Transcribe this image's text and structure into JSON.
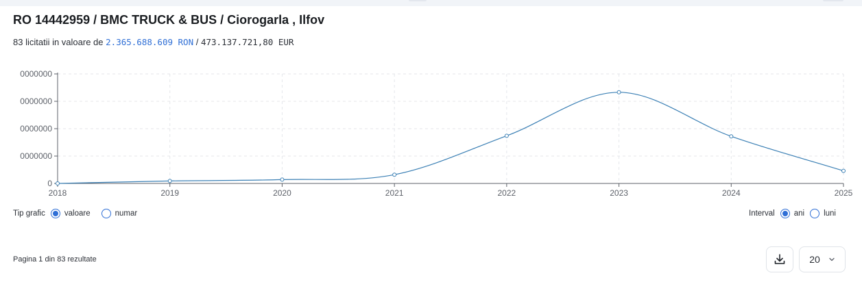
{
  "header": {
    "title": "RO 14442959 / BMC TRUCK & BUS / Ciorogarla , Ilfov",
    "summary_prefix": "83 licitatii in valoare de",
    "value_ron": "2.365.688.609 RON",
    "separator": "/",
    "value_eur": "473.137.721,80 EUR"
  },
  "colors": {
    "accent": "#2f6fd6",
    "line": "#3a7fb4"
  },
  "chart_data": {
    "type": "line",
    "x": [
      "2018",
      "2019",
      "2020",
      "2021",
      "2022",
      "2023",
      "2024",
      "2025"
    ],
    "series": [
      {
        "values": [
          0,
          45000000,
          70000000,
          160000000,
          870000000,
          1665000000,
          860000000,
          230000000
        ]
      }
    ],
    "y_tick_labels": [
      "0",
      "0000000",
      "0000000",
      "0000000",
      "0000000"
    ],
    "ylim": [
      0,
      2000000000
    ],
    "grid": true,
    "legend": "none"
  },
  "controls": {
    "chart_type_label": "Tip grafic",
    "chart_type_options": [
      "valoare",
      "numar"
    ],
    "chart_type_selected": "valoare",
    "interval_label": "Interval",
    "interval_options": [
      "ani",
      "luni"
    ],
    "interval_selected": "ani"
  },
  "pagination": {
    "text": "Pagina 1 din 83 rezultate",
    "page_size": "20",
    "download_icon": "download-icon",
    "dropdown_icon": "chevron-down-icon"
  }
}
